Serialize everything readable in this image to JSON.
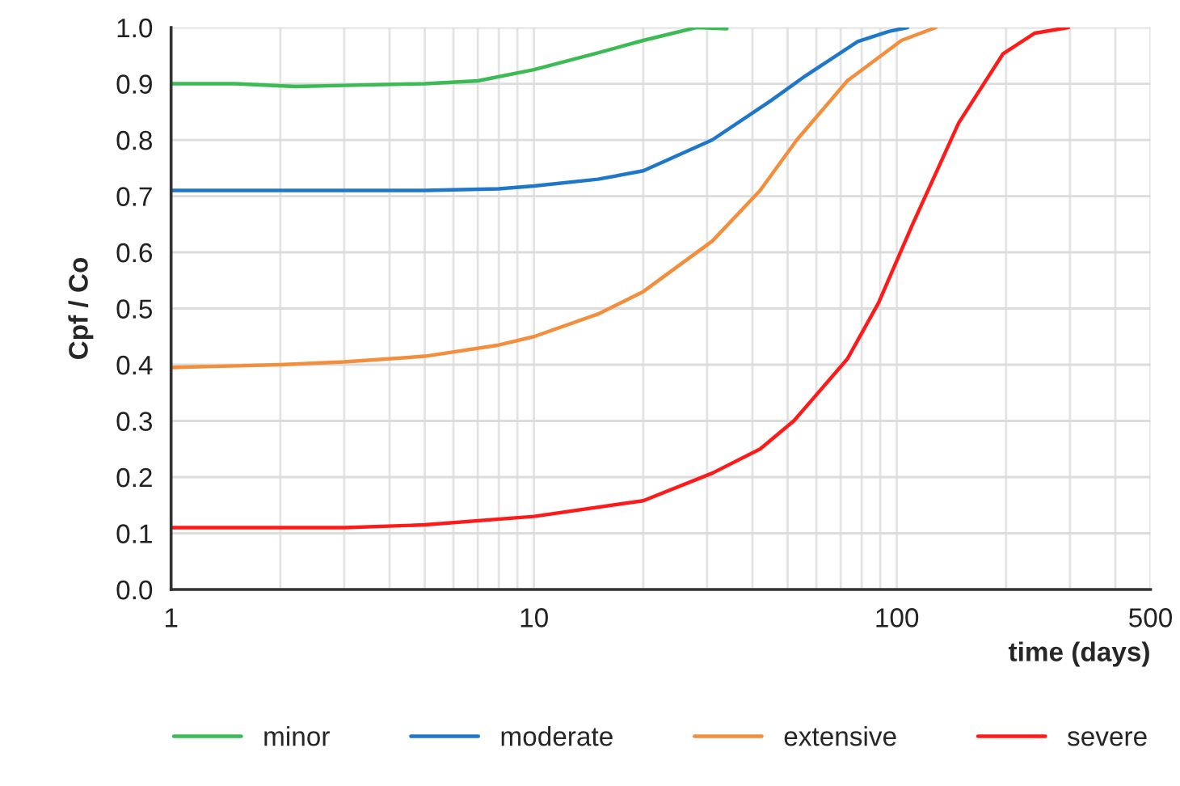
{
  "chart_data": {
    "type": "line",
    "xlabel": "time (days)",
    "ylabel": "Cpf / Co",
    "log": "x",
    "xlim": [
      1,
      500
    ],
    "xticks": [
      1,
      10,
      100,
      500
    ],
    "ylim": [
      0,
      1
    ],
    "yticks": [
      {
        "value": 0,
        "label": "0.0"
      },
      {
        "value": 0.1,
        "label": "0.1"
      },
      {
        "value": 0.2,
        "label": "0.2"
      },
      {
        "value": 0.3,
        "label": "0.3"
      },
      {
        "value": 0.4,
        "label": "0.4"
      },
      {
        "value": 0.5,
        "label": "0.5"
      },
      {
        "value": 0.6,
        "label": "0.6"
      },
      {
        "value": 0.7,
        "label": "0.7"
      },
      {
        "value": 0.8,
        "label": "0.8"
      },
      {
        "value": 0.9,
        "label": "0.9"
      },
      {
        "value": 1,
        "label": "1.0"
      }
    ],
    "grid": true,
    "legend": "bottom",
    "marker": "none",
    "line_style": "solid",
    "series": [
      {
        "name": "minor",
        "color": "#3cba54",
        "x": [
          1,
          1.5,
          2.2,
          3,
          5,
          7,
          10,
          15,
          20,
          28,
          34
        ],
        "values": [
          0.9,
          0.9,
          0.895,
          0.897,
          0.9,
          0.905,
          0.925,
          0.955,
          0.977,
          1.0,
          0.998
        ]
      },
      {
        "name": "moderate",
        "color": "#1f77c9",
        "x": [
          1,
          3,
          5,
          8,
          10,
          15,
          20,
          31,
          45,
          56,
          78,
          95,
          107
        ],
        "values": [
          0.71,
          0.71,
          0.71,
          0.713,
          0.718,
          0.73,
          0.745,
          0.8,
          0.87,
          0.914,
          0.975,
          0.993,
          1.0
        ]
      },
      {
        "name": "extensive",
        "color": "#f28e3c",
        "x": [
          1,
          2,
          3,
          5,
          8,
          10,
          15,
          20,
          31,
          42,
          53,
          73,
          103,
          128
        ],
        "values": [
          0.395,
          0.4,
          0.405,
          0.415,
          0.435,
          0.45,
          0.49,
          0.53,
          0.62,
          0.71,
          0.8,
          0.905,
          0.977,
          1.0
        ]
      },
      {
        "name": "severe",
        "color": "#ff1a1a",
        "x": [
          1,
          3,
          5,
          10,
          20,
          31,
          42,
          52,
          73,
          89,
          110,
          148,
          196,
          240,
          297
        ],
        "values": [
          0.11,
          0.11,
          0.115,
          0.13,
          0.158,
          0.207,
          0.25,
          0.3,
          0.41,
          0.51,
          0.647,
          0.83,
          0.953,
          0.99,
          1.0
        ]
      }
    ]
  }
}
